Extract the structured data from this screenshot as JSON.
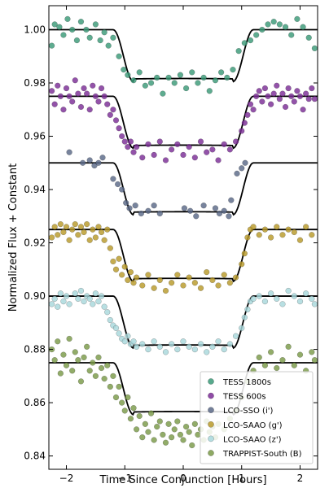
{
  "chart_data": {
    "type": "scatter",
    "title": "",
    "xlabel": "Time Since Conjunction [Hours]",
    "ylabel": "Normalized Flux + Constant",
    "xlim": [
      -2.3,
      2.3
    ],
    "ylim": [
      0.835,
      1.009
    ],
    "xticks": [
      -2,
      -1,
      0,
      1,
      2
    ],
    "xtick_labels": [
      "−2",
      "−1",
      "0",
      "1",
      "2"
    ],
    "yticks": [
      0.84,
      0.86,
      0.88,
      0.9,
      0.92,
      0.94,
      0.96,
      0.98,
      1.0
    ],
    "ytick_labels": [
      "0.84",
      "0.86",
      "0.88",
      "0.90",
      "0.92",
      "0.94",
      "0.96",
      "0.98",
      "1.00"
    ],
    "grid": false,
    "legend_position": "lower-right",
    "transit_model": {
      "ingress_start": -1.2,
      "ingress_end": -0.85,
      "egress_start": 0.85,
      "egress_end": 1.2,
      "depth": 0.0195,
      "line_color": "#000000"
    },
    "series": [
      {
        "name": "TESS 1800s",
        "color": "#3a9a78",
        "baseline": 1.0,
        "x": [
          -2.25,
          -2.2,
          -2.12,
          -2.05,
          -1.98,
          -1.9,
          -1.82,
          -1.75,
          -1.66,
          -1.6,
          -1.5,
          -1.42,
          -1.35,
          -1.28,
          -1.2,
          -1.1,
          -1.02,
          -0.95,
          -0.85,
          -0.75,
          -0.65,
          -0.55,
          -0.45,
          -0.35,
          -0.25,
          -0.15,
          -0.05,
          0.05,
          0.15,
          0.25,
          0.35,
          0.45,
          0.55,
          0.65,
          0.75,
          0.85,
          0.95,
          1.05,
          1.15,
          1.25,
          1.35,
          1.45,
          1.55,
          1.65,
          1.75,
          1.85,
          1.95,
          2.05,
          2.15,
          2.25
        ],
        "y": [
          0.994,
          1.002,
          1.001,
          0.998,
          1.004,
          1.0,
          0.996,
          1.003,
          1.0,
          0.997,
          1.002,
          0.996,
          0.999,
          0.994,
          0.997,
          0.99,
          0.985,
          0.983,
          0.981,
          0.984,
          0.979,
          0.98,
          0.982,
          0.976,
          0.982,
          0.98,
          0.983,
          0.978,
          0.984,
          0.98,
          0.982,
          0.977,
          0.981,
          0.984,
          0.982,
          0.985,
          0.992,
          0.995,
          0.996,
          0.998,
          1.0,
          1.002,
          1.003,
          1.002,
          1.001,
          0.998,
          1.004,
          1.001,
          0.997,
          0.993
        ]
      },
      {
        "name": "TESS 600s",
        "color": "#7b2d96",
        "baseline": 0.975,
        "x": [
          -2.25,
          -2.2,
          -2.15,
          -2.1,
          -2.05,
          -2.0,
          -1.95,
          -1.9,
          -1.85,
          -1.8,
          -1.75,
          -1.7,
          -1.65,
          -1.6,
          -1.55,
          -1.5,
          -1.45,
          -1.4,
          -1.35,
          -1.3,
          -1.25,
          -1.2,
          -1.15,
          -1.1,
          -1.05,
          -1.0,
          -0.95,
          -0.9,
          -0.85,
          -0.8,
          -0.7,
          -0.6,
          -0.5,
          -0.4,
          -0.3,
          -0.2,
          -0.1,
          0.0,
          0.1,
          0.2,
          0.3,
          0.4,
          0.5,
          0.6,
          0.7,
          0.8,
          0.9,
          1.0,
          1.05,
          1.1,
          1.15,
          1.2,
          1.25,
          1.3,
          1.35,
          1.4,
          1.45,
          1.5,
          1.55,
          1.6,
          1.65,
          1.7,
          1.75,
          1.8,
          1.85,
          1.9,
          1.95,
          2.0,
          2.05,
          2.1,
          2.15,
          2.2,
          2.25
        ],
        "y": [
          0.977,
          0.972,
          0.979,
          0.975,
          0.97,
          0.978,
          0.975,
          0.973,
          0.981,
          0.976,
          0.971,
          0.978,
          0.976,
          0.97,
          0.979,
          0.975,
          0.973,
          0.978,
          0.975,
          0.972,
          0.968,
          0.97,
          0.966,
          0.963,
          0.96,
          0.958,
          0.956,
          0.958,
          0.954,
          0.956,
          0.952,
          0.957,
          0.953,
          0.958,
          0.951,
          0.955,
          0.957,
          0.953,
          0.956,
          0.952,
          0.958,
          0.954,
          0.955,
          0.951,
          0.957,
          0.955,
          0.958,
          0.962,
          0.965,
          0.968,
          0.972,
          0.97,
          0.975,
          0.977,
          0.973,
          0.978,
          0.975,
          0.972,
          0.976,
          0.979,
          0.974,
          0.976,
          0.971,
          0.978,
          0.975,
          0.973,
          0.977,
          0.975,
          0.97,
          0.976,
          0.974,
          0.978,
          0.974
        ]
      },
      {
        "name": "LCO-SSO (i')",
        "color": "#5a6987",
        "baseline": 0.95,
        "x": [
          -1.95,
          -1.72,
          -1.6,
          -1.52,
          -1.45,
          -1.38,
          -1.2,
          -1.12,
          -1.05,
          -0.98,
          -0.92,
          -0.82,
          -0.72,
          -0.6,
          -0.5,
          -0.4,
          0.02,
          0.12,
          0.22,
          0.35,
          0.55,
          0.62,
          0.7,
          0.78,
          0.82,
          0.92,
          1.0,
          1.06
        ],
        "y": [
          0.954,
          0.95,
          0.951,
          0.949,
          0.95,
          0.952,
          0.944,
          0.942,
          0.94,
          0.935,
          0.933,
          0.934,
          0.931,
          0.932,
          0.934,
          0.931,
          0.933,
          0.932,
          0.93,
          0.934,
          0.933,
          0.931,
          0.932,
          0.93,
          0.936,
          0.946,
          0.948,
          0.95
        ]
      },
      {
        "name": "LCO-SAAO (g')",
        "color": "#b89a2a",
        "baseline": 0.925,
        "x": [
          -2.25,
          -2.2,
          -2.15,
          -2.1,
          -2.05,
          -2.0,
          -1.95,
          -1.9,
          -1.85,
          -1.8,
          -1.75,
          -1.7,
          -1.65,
          -1.6,
          -1.55,
          -1.5,
          -1.45,
          -1.4,
          -1.35,
          -1.3,
          -1.25,
          -1.2,
          -1.15,
          -1.1,
          -1.05,
          -1.0,
          -0.95,
          -0.9,
          -0.85,
          -0.8,
          -0.7,
          -0.6,
          -0.5,
          -0.4,
          -0.3,
          -0.2,
          -0.1,
          0.0,
          0.1,
          0.2,
          0.3,
          0.4,
          0.5,
          0.6,
          0.7,
          0.8,
          0.9,
          1.0,
          1.05,
          1.1,
          1.15,
          1.2,
          1.3,
          1.4,
          1.5,
          1.6,
          1.7,
          1.8,
          1.9,
          2.0,
          2.1,
          2.2
        ],
        "y": [
          0.922,
          0.926,
          0.923,
          0.927,
          0.924,
          0.926,
          0.921,
          0.925,
          0.927,
          0.923,
          0.926,
          0.924,
          0.927,
          0.921,
          0.925,
          0.922,
          0.926,
          0.924,
          0.921,
          0.925,
          0.918,
          0.913,
          0.91,
          0.914,
          0.908,
          0.911,
          0.906,
          0.909,
          0.905,
          0.907,
          0.904,
          0.908,
          0.903,
          0.906,
          0.902,
          0.905,
          0.908,
          0.904,
          0.907,
          0.905,
          0.903,
          0.909,
          0.906,
          0.904,
          0.908,
          0.905,
          0.907,
          0.912,
          0.916,
          0.922,
          0.925,
          0.926,
          0.923,
          0.925,
          0.922,
          0.926,
          0.923,
          0.925,
          0.924,
          0.921,
          0.926,
          0.923
        ]
      },
      {
        "name": "LCO-SAAO (z')",
        "color": "#a8d8dc",
        "baseline": 0.9,
        "x": [
          -2.25,
          -2.2,
          -2.15,
          -2.1,
          -2.05,
          -2.0,
          -1.95,
          -1.85,
          -1.8,
          -1.75,
          -1.7,
          -1.65,
          -1.6,
          -1.55,
          -1.5,
          -1.45,
          -1.4,
          -1.35,
          -1.3,
          -1.25,
          -1.2,
          -1.15,
          -1.1,
          -1.05,
          -1.0,
          -0.95,
          -0.9,
          -0.85,
          -0.8,
          -0.7,
          -0.6,
          -0.5,
          -0.4,
          -0.3,
          -0.2,
          -0.1,
          0.0,
          0.1,
          0.2,
          0.3,
          0.4,
          0.5,
          0.6,
          0.7,
          0.8,
          0.9,
          1.0,
          1.05,
          1.1,
          1.15,
          1.2,
          1.3,
          1.4,
          1.5,
          1.6,
          1.7,
          1.8,
          1.9,
          2.0,
          2.1,
          2.2,
          2.25
        ],
        "y": [
          0.897,
          0.899,
          0.896,
          0.901,
          0.898,
          0.9,
          0.897,
          0.901,
          0.899,
          0.902,
          0.898,
          0.9,
          0.899,
          0.897,
          0.901,
          0.898,
          0.9,
          0.896,
          0.894,
          0.891,
          0.889,
          0.888,
          0.886,
          0.884,
          0.883,
          0.885,
          0.882,
          0.883,
          0.881,
          0.882,
          0.88,
          0.883,
          0.881,
          0.879,
          0.882,
          0.88,
          0.883,
          0.881,
          0.88,
          0.882,
          0.879,
          0.881,
          0.883,
          0.88,
          0.882,
          0.885,
          0.888,
          0.892,
          0.895,
          0.898,
          0.899,
          0.9,
          0.898,
          0.901,
          0.899,
          0.897,
          0.902,
          0.9,
          0.898,
          0.901,
          0.899,
          0.897
        ]
      },
      {
        "name": "TRAPPIST-South (B)",
        "color": "#7a9a48",
        "baseline": 0.875,
        "x": [
          -2.25,
          -2.2,
          -2.15,
          -2.1,
          -2.05,
          -2.0,
          -1.95,
          -1.9,
          -1.85,
          -1.8,
          -1.75,
          -1.7,
          -1.65,
          -1.6,
          -1.55,
          -1.5,
          -1.45,
          -1.4,
          -1.35,
          -1.3,
          -1.25,
          -1.2,
          -1.15,
          -1.1,
          -1.05,
          -1.0,
          -0.95,
          -0.9,
          -0.85,
          -0.8,
          -0.75,
          -0.7,
          -0.65,
          -0.6,
          -0.55,
          -0.5,
          -0.45,
          -0.4,
          -0.35,
          -0.3,
          -0.25,
          -0.2,
          -0.15,
          -0.1,
          -0.05,
          0.0,
          0.05,
          0.1,
          0.15,
          0.2,
          0.25,
          0.3,
          0.35,
          0.4,
          0.45,
          0.5,
          0.55,
          0.6,
          0.7,
          0.8,
          0.9,
          1.0,
          1.1,
          1.2,
          1.3,
          1.4,
          1.5,
          1.6,
          1.7,
          1.8,
          1.9,
          2.0,
          2.1,
          2.2,
          2.25
        ],
        "y": [
          0.88,
          0.876,
          0.883,
          0.871,
          0.878,
          0.874,
          0.884,
          0.872,
          0.879,
          0.876,
          0.868,
          0.877,
          0.881,
          0.872,
          0.875,
          0.87,
          0.877,
          0.873,
          0.869,
          0.874,
          0.866,
          0.87,
          0.862,
          0.866,
          0.86,
          0.857,
          0.862,
          0.854,
          0.858,
          0.85,
          0.855,
          0.847,
          0.852,
          0.849,
          0.856,
          0.846,
          0.851,
          0.853,
          0.848,
          0.845,
          0.852,
          0.847,
          0.85,
          0.853,
          0.848,
          0.846,
          0.851,
          0.849,
          0.844,
          0.852,
          0.848,
          0.85,
          0.846,
          0.853,
          0.849,
          0.851,
          0.847,
          0.852,
          0.85,
          0.854,
          0.857,
          0.862,
          0.868,
          0.872,
          0.877,
          0.874,
          0.879,
          0.873,
          0.876,
          0.881,
          0.874,
          0.878,
          0.872,
          0.879,
          0.876
        ]
      }
    ]
  }
}
